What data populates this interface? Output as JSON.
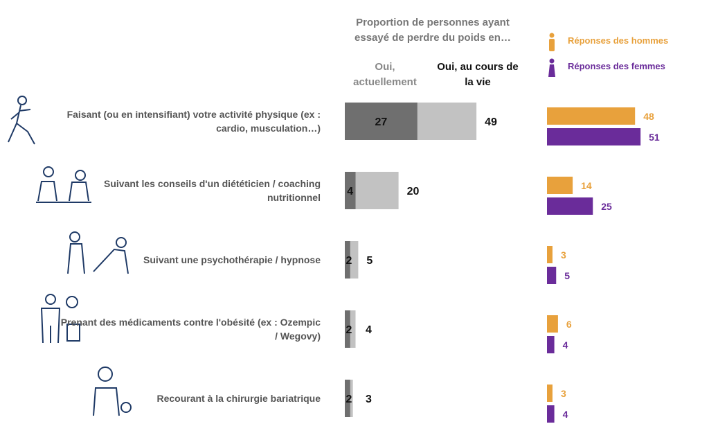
{
  "chart_data": [
    {
      "type": "overlap-bar",
      "title": "Proportion de personnes ayant essayé de perdre du poids en…",
      "categories": [
        "Faisant (ou en intensifiant) votre activité physique (ex : cardio, musculation…)",
        "Suivant les conseils d'un diététicien / coaching nutritionnel",
        "Suivant une psychothérapie / hypnose",
        "Prenant des médicaments contre l'obésité (ex : Ozempic / Wegovy)",
        "Recourant à la chirurgie bariatrique"
      ],
      "series": [
        {
          "name": "Oui, actuellement",
          "color": "#6f6f6f",
          "values": [
            27,
            4,
            2,
            2,
            2
          ]
        },
        {
          "name": "Oui, au cours de la vie",
          "color": "#c2c2c2",
          "values": [
            49,
            20,
            5,
            4,
            3
          ]
        }
      ]
    },
    {
      "type": "grouped-bar",
      "categories": [
        null,
        null,
        null,
        null,
        null
      ],
      "series": [
        {
          "name": "Réponses des hommes",
          "color": "#e8a13c",
          "values": [
            48,
            14,
            3,
            6,
            3
          ]
        },
        {
          "name": "Réponses des femmes",
          "color": "#6a2c9a",
          "values": [
            51,
            25,
            5,
            4,
            4
          ]
        }
      ]
    }
  ]
}
